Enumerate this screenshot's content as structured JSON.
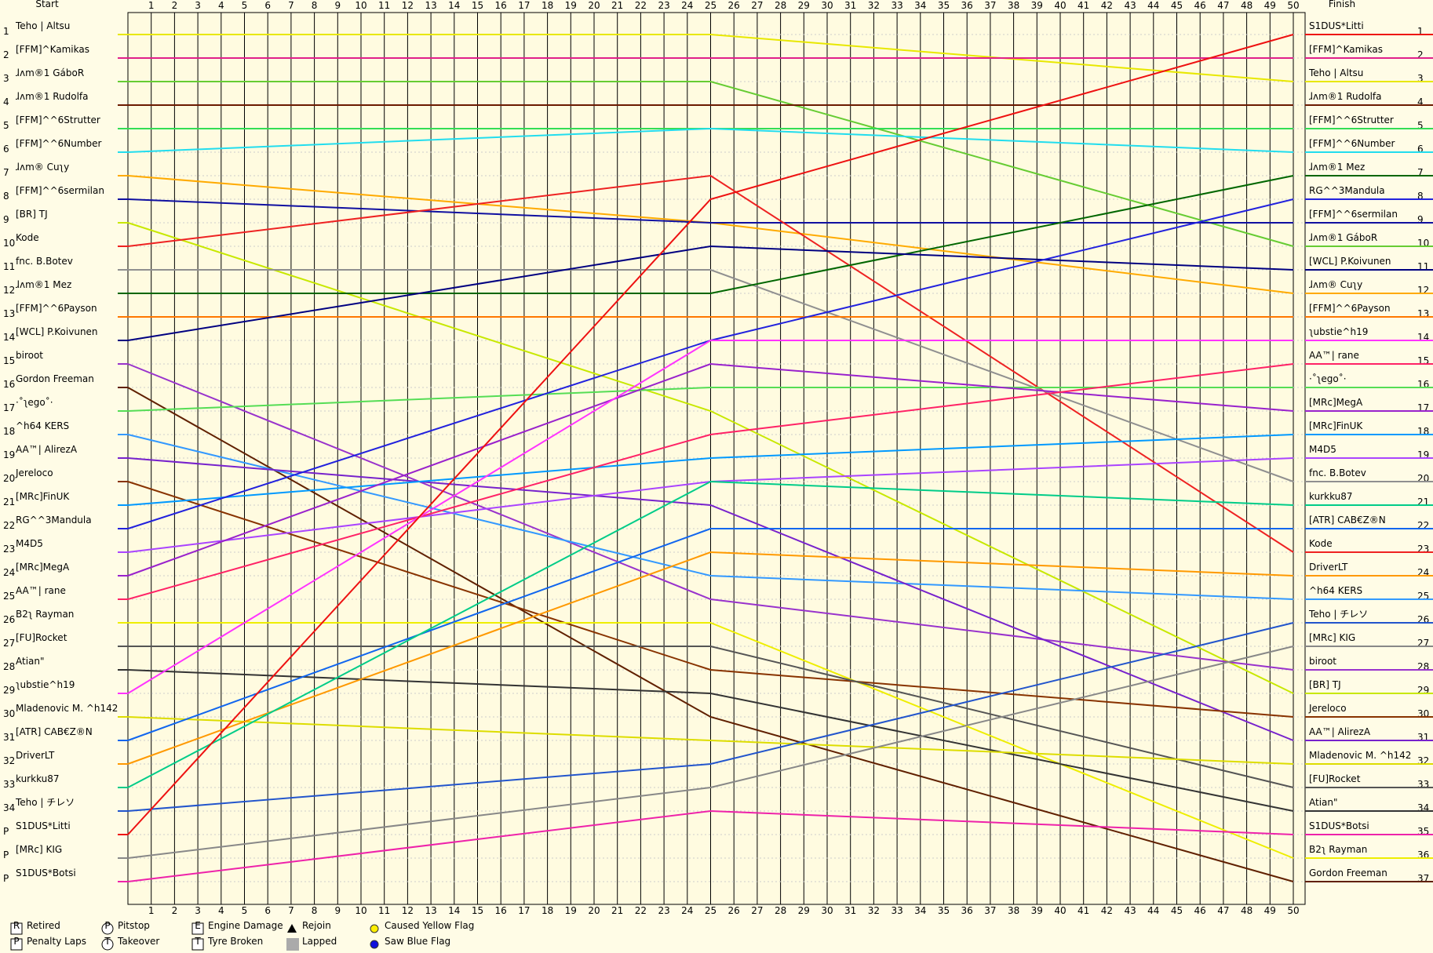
{
  "chart_data": {
    "type": "line",
    "start_title": "Start",
    "finish_title": "Finish",
    "xticks": [
      1,
      2,
      3,
      4,
      5,
      6,
      7,
      8,
      9,
      10,
      11,
      12,
      13,
      14,
      15,
      16,
      17,
      18,
      19,
      20,
      21,
      22,
      23,
      24,
      25,
      26,
      27,
      28,
      29,
      30,
      31,
      32,
      33,
      34,
      35,
      36,
      37,
      38,
      39,
      40,
      41,
      42,
      43,
      44,
      45,
      46,
      47,
      48,
      49,
      50
    ],
    "xlim": [
      0,
      50
    ],
    "ylim": [
      1,
      37
    ],
    "start_ticks": [
      1,
      2,
      3,
      4,
      5,
      6,
      7,
      8,
      9,
      10,
      11,
      12,
      13,
      14,
      15,
      16,
      17,
      18,
      19,
      20,
      21,
      22,
      23,
      24,
      25,
      26,
      27,
      28,
      29,
      30,
      31,
      32,
      33,
      34,
      {
        "value": 35,
        "label": "P"
      },
      {
        "value": 36,
        "label": "P"
      },
      {
        "value": 37,
        "label": "P"
      }
    ],
    "finish_ticks": [
      1,
      2,
      3,
      4,
      5,
      6,
      7,
      8,
      9,
      10,
      11,
      12,
      13,
      14,
      15,
      16,
      17,
      18,
      19,
      20,
      21,
      22,
      23,
      24,
      25,
      26,
      27,
      28,
      29,
      30,
      31,
      32,
      33,
      34,
      35,
      36,
      37
    ],
    "finish_labels": [
      "S1DUS*Litti",
      "[FFM]^Kamikas",
      "Teho | Altsu",
      "ɺᴧm®1 Rudolfa",
      "[FFM]^^6Strutter",
      "[FFM]^^6Number",
      "ɺᴧm®1 Mez",
      "RG^^3Mandula",
      "[FFM]^^6sermilan",
      "ɺᴧm®1 GáboR",
      "[WCL] P.Koivunen",
      "ɺᴧm® Cuʅy",
      "[FFM]^^6Payson",
      "ʅubstie^h19",
      "AA™| rane",
      "·˚ʅego˚·",
      "[MRc]MegA",
      "[MRc]FinUK",
      "M4D5",
      "fnc. B.Botev",
      "kurkku87",
      "[ATR] CAB€Z®N",
      "Kode",
      "DriverLT",
      "^h64 KERS",
      "Teho | チレソ",
      "[MRc] KIG",
      "biroot",
      "[BR] TJ",
      "Jereloco",
      "AA™| AlirezA",
      "Mladenovic M. ^h142",
      "[FU]Rocket",
      "Atian\"",
      "S1DUS*Botsi",
      "B2ʅ Rayman",
      "Gordon Freeman"
    ],
    "x": [
      0,
      25,
      50
    ],
    "series": [
      {
        "name": "Teho | Altsu",
        "color": "#e8e800",
        "values": [
          1,
          1,
          3
        ]
      },
      {
        "name": "[FFM]^Kamikas",
        "color": "#e0208a",
        "values": [
          2,
          2,
          2
        ]
      },
      {
        "name": "ɺᴧm®1 GáboR",
        "color": "#66cc33",
        "values": [
          3,
          3,
          10
        ]
      },
      {
        "name": "ɺᴧm®1 Rudolfa",
        "color": "#6b1a00",
        "values": [
          4,
          4,
          4
        ]
      },
      {
        "name": "[FFM]^^6Strutter",
        "color": "#33dd55",
        "values": [
          5,
          5,
          5
        ]
      },
      {
        "name": "[FFM]^^6Number",
        "color": "#22ddee",
        "values": [
          6,
          5,
          6
        ]
      },
      {
        "name": "ɺᴧm® Cuʅy",
        "color": "#ffaa00",
        "values": [
          7,
          9,
          12
        ]
      },
      {
        "name": "[FFM]^^6sermilan",
        "color": "#1010a0",
        "values": [
          8,
          9,
          9
        ]
      },
      {
        "name": "[BR] TJ",
        "color": "#c8e800",
        "values": [
          9,
          17,
          29
        ]
      },
      {
        "name": "Kode",
        "color": "#ee2222",
        "values": [
          10,
          7,
          23
        ]
      },
      {
        "name": "fnc. B.Botev",
        "color": "#909090",
        "values": [
          11,
          11,
          20
        ]
      },
      {
        "name": "ɺᴧm®1 Mez",
        "color": "#006600",
        "values": [
          12,
          12,
          7
        ]
      },
      {
        "name": "[FFM]^^6Payson",
        "color": "#ff7700",
        "values": [
          13,
          13,
          13
        ]
      },
      {
        "name": "[WCL] P.Koivunen",
        "color": "#000080",
        "values": [
          14,
          10,
          11
        ]
      },
      {
        "name": "biroot",
        "color": "#9933cc",
        "values": [
          15,
          25,
          28
        ]
      },
      {
        "name": "Gordon Freeman",
        "color": "#602000",
        "values": [
          16,
          30,
          37
        ]
      },
      {
        "name": "·˚ʅego˚·",
        "color": "#55dd55",
        "values": [
          17,
          16,
          16
        ]
      },
      {
        "name": "^h64 KERS",
        "color": "#3399ff",
        "values": [
          18,
          24,
          25
        ]
      },
      {
        "name": "AA™| AlirezA",
        "color": "#7722cc",
        "values": [
          19,
          21,
          31
        ]
      },
      {
        "name": "Jereloco",
        "color": "#883300",
        "values": [
          20,
          28,
          30
        ]
      },
      {
        "name": "[MRc]FinUK",
        "color": "#0099ff",
        "values": [
          21,
          19,
          18
        ]
      },
      {
        "name": "RG^^3Mandula",
        "color": "#2222dd",
        "values": [
          22,
          14,
          8
        ]
      },
      {
        "name": "M4D5",
        "color": "#aa44ff",
        "values": [
          23,
          20,
          19
        ]
      },
      {
        "name": "[MRc]MegA",
        "color": "#9922cc",
        "values": [
          24,
          15,
          17
        ]
      },
      {
        "name": "AA™| rane",
        "color": "#ff2266",
        "values": [
          25,
          18,
          15
        ]
      },
      {
        "name": "B2ʅ Rayman",
        "color": "#eeee00",
        "values": [
          26,
          26,
          36
        ]
      },
      {
        "name": "[FU]Rocket",
        "color": "#555555",
        "values": [
          27,
          27,
          33
        ]
      },
      {
        "name": "Atian\"",
        "color": "#333333",
        "values": [
          28,
          29,
          34
        ]
      },
      {
        "name": "ʅubstie^h19",
        "color": "#ff33ff",
        "values": [
          29,
          14,
          14
        ]
      },
      {
        "name": "Mladenovic M. ^h142",
        "color": "#dddd00",
        "values": [
          30,
          31,
          32
        ]
      },
      {
        "name": "[ATR] CAB€Z®N",
        "color": "#1166ee",
        "values": [
          31,
          22,
          22
        ]
      },
      {
        "name": "DriverLT",
        "color": "#ff9900",
        "values": [
          32,
          23,
          24
        ]
      },
      {
        "name": "kurkku87",
        "color": "#00cc88",
        "values": [
          33,
          20,
          21
        ]
      },
      {
        "name": "Teho | チレソ",
        "color": "#2255cc",
        "values": [
          34,
          32,
          26
        ]
      },
      {
        "name": "S1DUS*Litti",
        "color": "#ee1111",
        "values": [
          35,
          8,
          1
        ]
      },
      {
        "name": "[MRc] KIG",
        "color": "#888888",
        "values": [
          36,
          33,
          27
        ]
      },
      {
        "name": "S1DUS*Botsi",
        "color": "#ee22aa",
        "values": [
          37,
          34,
          35
        ]
      }
    ],
    "legend": [
      {
        "symbol": "R",
        "label": "Retired"
      },
      {
        "symbol": "P",
        "label": "Penalty Laps"
      },
      {
        "symbol": "P",
        "label": "Pitstop"
      },
      {
        "symbol": "T",
        "label": "Takeover"
      },
      {
        "symbol": "E",
        "label": "Engine Damage"
      },
      {
        "symbol": "T",
        "label": "Tyre Broken"
      },
      {
        "label": "Rejoin"
      },
      {
        "label": "Lapped"
      },
      {
        "label": "Caused Yellow Flag"
      },
      {
        "label": "Saw Blue Flag"
      }
    ]
  }
}
